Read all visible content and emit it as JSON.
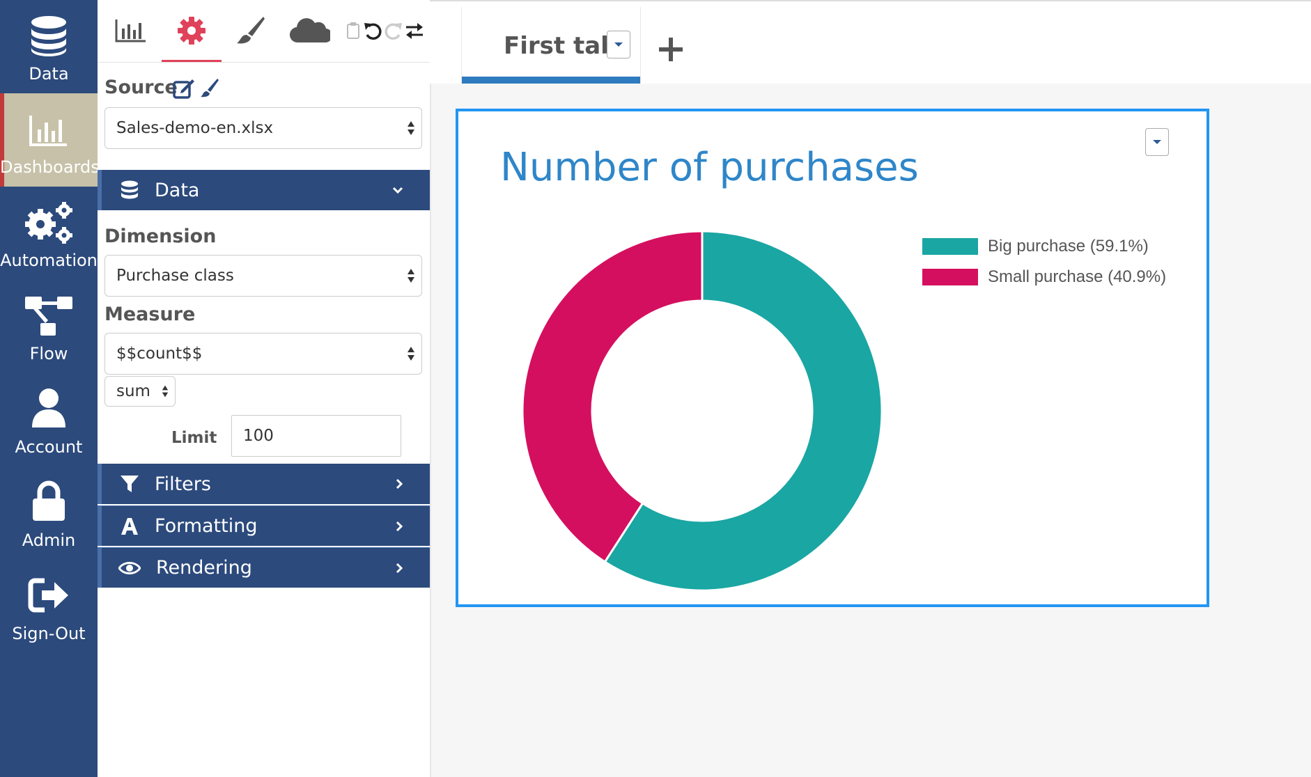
{
  "nav": {
    "items": [
      {
        "label": "Data",
        "icon": "database-icon"
      },
      {
        "label": "Dashboards",
        "icon": "bar-chart-icon",
        "active": true
      },
      {
        "label": "Automation",
        "icon": "gears-icon"
      },
      {
        "label": "Flow",
        "icon": "flow-icon"
      },
      {
        "label": "Account",
        "icon": "user-icon"
      },
      {
        "label": "Admin",
        "icon": "lock-icon"
      },
      {
        "label": "Sign-Out",
        "icon": "sign-out-icon"
      }
    ]
  },
  "toolbar": {
    "tools": [
      "chart-icon",
      "gear-icon",
      "brush-icon",
      "cloud-icon",
      "clipboard-icon",
      "undo-icon",
      "redo-icon",
      "swap-icon"
    ],
    "active_tool": "gear-icon"
  },
  "config": {
    "source_label": "Source",
    "source_value": "Sales-demo-en.xlsx",
    "data_section": "Data",
    "dimension_label": "Dimension",
    "dimension_value": "Purchase class",
    "measure_label": "Measure",
    "measure_value": "$$count$$",
    "aggregation_value": "sum",
    "limit_label": "Limit",
    "limit_value": "100",
    "sections": [
      {
        "label": "Filters",
        "icon": "filter-icon"
      },
      {
        "label": "Formatting",
        "icon": "font-icon"
      },
      {
        "label": "Rendering",
        "icon": "eye-icon"
      }
    ]
  },
  "tabs": {
    "items": [
      {
        "label": "First tab",
        "active": true
      }
    ],
    "add_label": "+"
  },
  "colors": {
    "nav_bg": "#2c4a7c",
    "accent_blue": "#2196f3",
    "title_blue": "#2f86c9",
    "teal": "#1aa6a3",
    "crimson": "#d50f5f"
  },
  "chart_data": {
    "type": "pie",
    "title": "Number of purchases",
    "donut": true,
    "legend_position": "right",
    "slices": [
      {
        "label": "Big purchase (59.1%)",
        "value": 59.1,
        "color": "#1aa6a3"
      },
      {
        "label": "Small purchase (40.9%)",
        "value": 40.9,
        "color": "#d50f5f"
      }
    ]
  }
}
